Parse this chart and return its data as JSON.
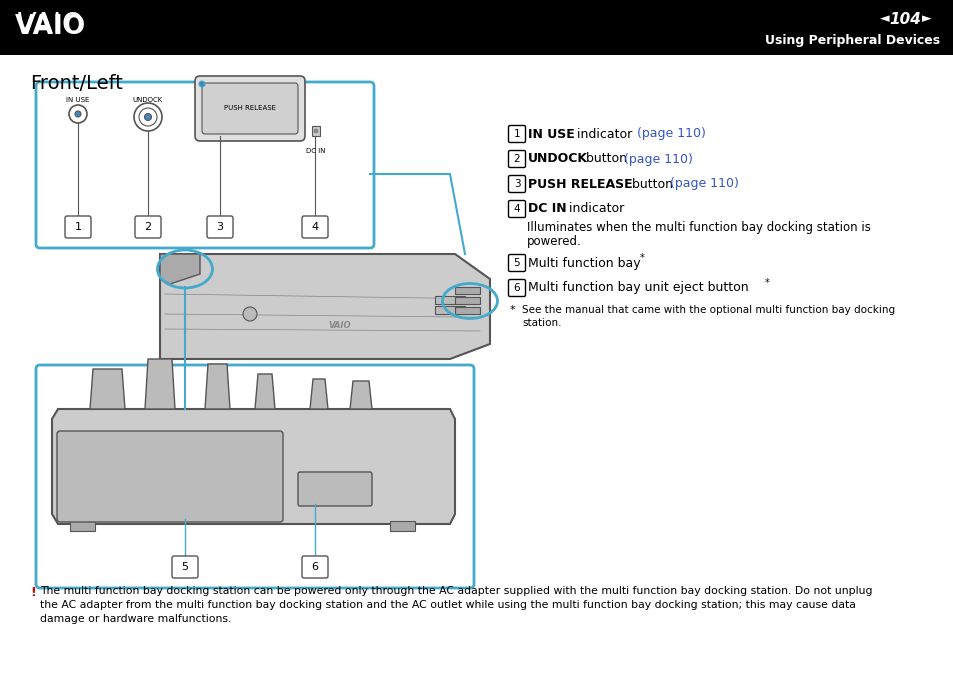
{
  "header_bg": "#000000",
  "header_text_color": "#ffffff",
  "page_num": "104",
  "section": "Using Peripheral Devices",
  "page_title": "Front/Left",
  "body_bg": "#ffffff",
  "body_text_color": "#000000",
  "link_color": "#3355cc",
  "border_color": "#44aacc",
  "device_fill": "#c8c8c8",
  "device_stroke": "#555555",
  "warning_color": "#cc0000"
}
